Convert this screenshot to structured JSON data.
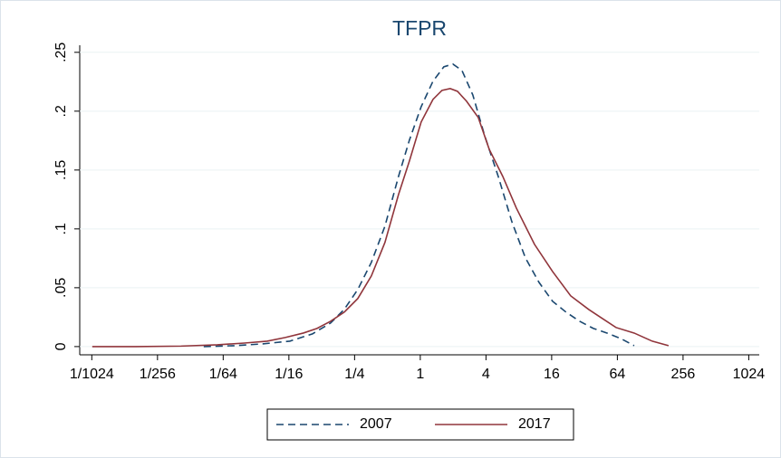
{
  "chart_data": {
    "type": "line",
    "title": "TFPR",
    "x_scale": "log2",
    "grid": true,
    "legend": "bottom",
    "xlim": [
      0.000757,
      1278
    ],
    "ylim": [
      -0.007,
      0.256
    ],
    "xticks": [
      {
        "value": 0.0009765625,
        "label": "1/1024"
      },
      {
        "value": 0.00390625,
        "label": "1/256"
      },
      {
        "value": 0.015625,
        "label": "1/64"
      },
      {
        "value": 0.0625,
        "label": "1/16"
      },
      {
        "value": 0.25,
        "label": "1/4"
      },
      1,
      4,
      16,
      64,
      256,
      1024
    ],
    "yticks": [
      0,
      {
        "value": 0.05,
        "label": ".05"
      },
      {
        "value": 0.1,
        "label": ".1"
      },
      {
        "value": 0.15,
        "label": ".15"
      },
      {
        "value": 0.2,
        "label": ".2"
      },
      {
        "value": 0.25,
        "label": ".25"
      }
    ],
    "series": [
      {
        "name": "2007",
        "color": "#1a476f",
        "line_style": "dashed",
        "x": [
          0.01036,
          0.02022,
          0.0359,
          0.0637,
          0.1028,
          0.1506,
          0.2008,
          0.2675,
          0.356,
          0.4745,
          0.632,
          0.795,
          1.019,
          1.307,
          1.644,
          1.99,
          2.41,
          3.03,
          3.89,
          5.18,
          6.9,
          9.19,
          12.24,
          16.3,
          21.7,
          28.9,
          38.6,
          51.4,
          68.4,
          91.2
        ],
        "values": [
          0,
          0.0008,
          0.0023,
          0.0046,
          0.0108,
          0.02,
          0.0315,
          0.0485,
          0.0715,
          0.1023,
          0.1446,
          0.1754,
          0.2038,
          0.2254,
          0.2377,
          0.24,
          0.2346,
          0.2138,
          0.1792,
          0.1446,
          0.1062,
          0.0754,
          0.0546,
          0.0385,
          0.0292,
          0.0215,
          0.0154,
          0.0115,
          0.0069,
          0.0008
        ]
      },
      {
        "name": "2017",
        "color": "#90353b",
        "line_style": "solid",
        "x": [
          0.000986,
          0.00247,
          0.00642,
          0.0138,
          0.02447,
          0.0395,
          0.0579,
          0.0849,
          0.113,
          0.1506,
          0.2008,
          0.2675,
          0.356,
          0.4745,
          0.632,
          0.795,
          1.019,
          1.307,
          1.582,
          1.879,
          2.19,
          2.652,
          3.4,
          4.28,
          5.7,
          7.59,
          11.13,
          16.3,
          23.9,
          35.0,
          46.7,
          62.2,
          91.2,
          133.6,
          188.5
        ],
        "values": [
          0,
          0,
          0.0004,
          0.0015,
          0.003,
          0.0046,
          0.0077,
          0.0115,
          0.0154,
          0.0215,
          0.0292,
          0.0408,
          0.06,
          0.0885,
          0.1292,
          0.1577,
          0.1908,
          0.21,
          0.2177,
          0.2192,
          0.2169,
          0.2085,
          0.1946,
          0.1677,
          0.1446,
          0.1177,
          0.0869,
          0.0638,
          0.0431,
          0.0315,
          0.0238,
          0.0162,
          0.0115,
          0.0046,
          0.0008
        ]
      }
    ]
  }
}
